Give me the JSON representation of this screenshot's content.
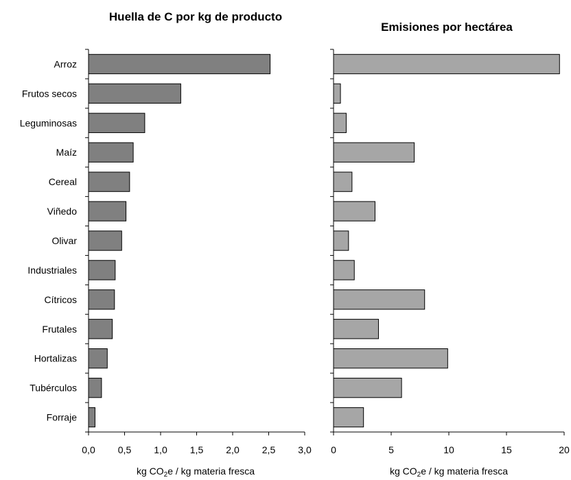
{
  "chart_data": [
    {
      "type": "bar",
      "orientation": "horizontal",
      "title": "Huella de C por kg de producto",
      "xlabel_parts": [
        "kg CO",
        "2",
        "e / kg materia fresca"
      ],
      "categories": [
        "Arroz",
        "Frutos secos",
        "Leguminosas",
        "Maíz",
        "Cereal",
        "Viñedo",
        "Olivar",
        "Industriales",
        "Cítricos",
        "Frutales",
        "Hortalizas",
        "Tubérculos",
        "Forraje"
      ],
      "values": [
        2.52,
        1.28,
        0.78,
        0.62,
        0.57,
        0.52,
        0.46,
        0.37,
        0.36,
        0.33,
        0.26,
        0.18,
        0.09
      ],
      "xlim": [
        0,
        3.0
      ],
      "xticks": [
        0,
        0.5,
        1.0,
        1.5,
        2.0,
        2.5,
        3.0
      ],
      "xtick_labels": [
        "0,0",
        "0,5",
        "1,0",
        "1,5",
        "2,0",
        "2,5",
        "3,0"
      ],
      "bar_color": "#808080",
      "grid": false
    },
    {
      "type": "bar",
      "orientation": "horizontal",
      "title": "Emisiones por hectárea",
      "xlabel_parts": [
        "kg CO",
        "2",
        "e / kg materia fresca"
      ],
      "categories": [
        "Arroz",
        "Frutos secos",
        "Leguminosas",
        "Maíz",
        "Cereal",
        "Viñedo",
        "Olivar",
        "Industriales",
        "Cítricos",
        "Frutales",
        "Hortalizas",
        "Tubérculos",
        "Forraje"
      ],
      "values": [
        19.6,
        0.6,
        1.1,
        7.0,
        1.6,
        3.6,
        1.3,
        1.8,
        7.9,
        3.9,
        9.9,
        5.9,
        2.6
      ],
      "xlim": [
        0,
        20
      ],
      "xticks": [
        0,
        5,
        10,
        15,
        20
      ],
      "xtick_labels": [
        "0",
        "5",
        "10",
        "15",
        "20"
      ],
      "bar_color": "#a6a6a6",
      "grid": false
    }
  ]
}
